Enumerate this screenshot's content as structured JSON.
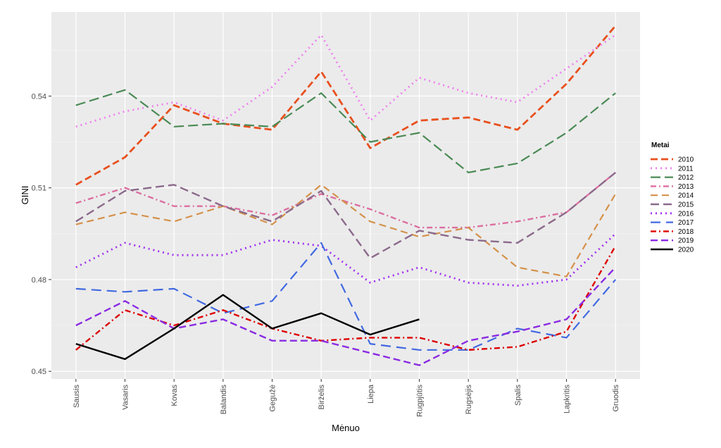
{
  "chart_data": {
    "type": "line",
    "xlabel": "Mėnuo",
    "ylabel": "GINI",
    "categories": [
      "Sausis",
      "Vasaris",
      "Kovas",
      "Balandis",
      "Gegužė",
      "Birželis",
      "Liepa",
      "Rugpjūtis",
      "Rugsėjis",
      "Spalis",
      "Lapkritis",
      "Gruodis"
    ],
    "y_ticks": [
      0.45,
      0.48,
      0.51,
      0.54
    ],
    "ylim": [
      0.4475,
      0.5675
    ],
    "grid": true,
    "legend": {
      "title": "Metai",
      "position": "right"
    },
    "series": [
      {
        "name": "2010",
        "color": "#e8501e",
        "dash": "10,5",
        "width": 2.8,
        "values": [
          0.511,
          0.52,
          0.537,
          0.531,
          0.529,
          0.548,
          0.523,
          0.532,
          0.533,
          0.529,
          0.544,
          0.563
        ]
      },
      {
        "name": "2011",
        "color": "#ee82ee",
        "dash": "2,5",
        "width": 2.8,
        "values": [
          0.53,
          0.535,
          0.538,
          0.532,
          0.543,
          0.56,
          0.532,
          0.546,
          0.541,
          0.538,
          0.549,
          0.56
        ]
      },
      {
        "name": "2012",
        "color": "#4a8a55",
        "dash": "14,6",
        "width": 2.2,
        "values": [
          0.537,
          0.542,
          0.53,
          0.531,
          0.53,
          0.541,
          0.525,
          0.528,
          0.515,
          0.518,
          0.528,
          0.541
        ]
      },
      {
        "name": "2013",
        "color": "#dc6fa0",
        "dash": "8,4,2,4",
        "width": 2.4,
        "values": [
          0.505,
          0.51,
          0.504,
          0.504,
          0.501,
          0.508,
          0.503,
          0.497,
          0.497,
          0.499,
          0.502,
          0.515
        ]
      },
      {
        "name": "2014",
        "color": "#d4914a",
        "dash": "10,6",
        "width": 2.2,
        "values": [
          0.498,
          0.502,
          0.499,
          0.504,
          0.498,
          0.511,
          0.499,
          0.494,
          0.497,
          0.484,
          0.481,
          0.508
        ]
      },
      {
        "name": "2015",
        "color": "#8b6a8b",
        "dash": "12,6",
        "width": 2.4,
        "values": [
          0.499,
          0.509,
          0.511,
          0.504,
          0.499,
          0.509,
          0.487,
          0.496,
          0.493,
          0.492,
          0.502,
          0.515
        ]
      },
      {
        "name": "2016",
        "color": "#a131f0",
        "dash": "2,5",
        "width": 2.8,
        "values": [
          0.484,
          0.492,
          0.488,
          0.488,
          0.493,
          0.491,
          0.479,
          0.484,
          0.479,
          0.478,
          0.48,
          0.495
        ]
      },
      {
        "name": "2017",
        "color": "#4169e1",
        "dash": "14,8",
        "width": 2.2,
        "values": [
          0.477,
          0.476,
          0.477,
          0.469,
          0.473,
          0.492,
          0.459,
          0.457,
          0.457,
          0.464,
          0.461,
          0.48
        ]
      },
      {
        "name": "2018",
        "color": "#dd0000",
        "dash": "8,4,2,4",
        "width": 2.4,
        "values": [
          0.457,
          0.47,
          0.465,
          0.47,
          0.464,
          0.46,
          0.461,
          0.461,
          0.457,
          0.458,
          0.463,
          0.491
        ]
      },
      {
        "name": "2019",
        "color": "#8a2be2",
        "dash": "10,5",
        "width": 2.4,
        "values": [
          0.465,
          0.473,
          0.464,
          0.467,
          0.46,
          0.46,
          0.456,
          0.452,
          0.46,
          0.463,
          0.467,
          0.484
        ]
      },
      {
        "name": "2020",
        "color": "#000000",
        "dash": "",
        "width": 2.4,
        "values": [
          0.459,
          0.454,
          0.464,
          0.475,
          0.464,
          0.469,
          0.462,
          0.467,
          null,
          null,
          null,
          null
        ]
      }
    ]
  }
}
